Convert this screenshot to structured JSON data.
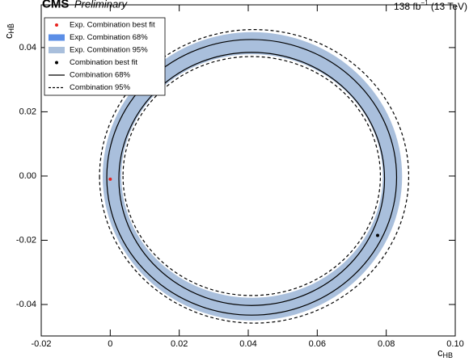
{
  "chart_data": {
    "type": "contour",
    "experiment": "CMS",
    "status": "Preliminary",
    "lumi": "138 fb",
    "lumi_exponent": "−1",
    "energy": "(13 TeV)",
    "x_label": "c",
    "x_label_sub": "HB",
    "y_label": "c",
    "y_label_sub": "HB̃",
    "xlim": [
      -0.02,
      0.1
    ],
    "ylim": [
      -0.0498,
      0.0533
    ],
    "xticks": [
      -0.02,
      0,
      0.02,
      0.04,
      0.06,
      0.08,
      {
        "value": 0.1,
        "label": "0.10"
      }
    ],
    "yticks": [
      -0.04,
      -0.02,
      {
        "value": 0,
        "label": "0.00"
      },
      0.02,
      0.04
    ],
    "legend": "upper left",
    "series": [
      {
        "name": "Exp. Combination best fit",
        "kind": "point",
        "color": "#e8221e",
        "x": [
          0
        ],
        "y": [
          -0.001
        ]
      },
      {
        "name": "Exp. Combination 68%",
        "kind": "band",
        "color": "#5b8ee6",
        "outer": {
          "cx": 0.0412,
          "cy": -0.0001,
          "rx": 0.0424,
          "ry": 0.0439
        },
        "inner": {
          "cx": 0.0411,
          "cy": 0,
          "rx": 0.0388,
          "ry": 0.0389
        }
      },
      {
        "name": "Exp. Combination 95%",
        "kind": "band",
        "color": "#a9bfdc",
        "outer": {
          "cx": 0.0412,
          "cy": -0.0001,
          "rx": 0.0434,
          "ry": 0.0449
        },
        "inner": {
          "cx": 0.0411,
          "cy": 0,
          "rx": 0.0379,
          "ry": 0.0379
        }
      },
      {
        "name": "Combination best fit",
        "kind": "point",
        "color": "#000000",
        "x": [
          0.0775
        ],
        "y": [
          -0.0185
        ]
      },
      {
        "name": "Combination 68%",
        "kind": "line",
        "dashed": false,
        "color": "#000000",
        "outer": {
          "cx": 0.041,
          "cy": -0.0004,
          "rx": 0.042,
          "ry": 0.0429
        },
        "inner": {
          "cx": 0.041,
          "cy": -0.0009,
          "rx": 0.0385,
          "ry": 0.0394
        }
      },
      {
        "name": "Combination 95%",
        "kind": "line",
        "dashed": true,
        "color": "#000000",
        "outer": {
          "cx": 0.0417,
          "cy": -0.0001,
          "rx": 0.0448,
          "ry": 0.0457
        },
        "inner": {
          "cx": 0.041,
          "cy": 0,
          "rx": 0.0373,
          "ry": 0.0372
        }
      }
    ]
  }
}
